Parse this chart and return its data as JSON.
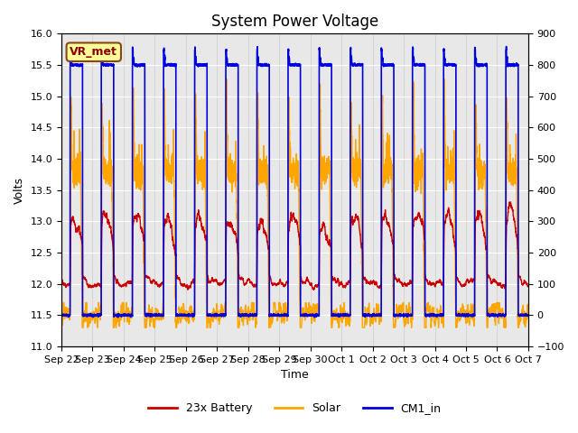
{
  "title": "System Power Voltage",
  "xlabel": "Time",
  "ylabel": "Volts",
  "left_ylim": [
    11.0,
    16.0
  ],
  "right_ylim": [
    -100,
    900
  ],
  "left_yticks": [
    11.0,
    11.5,
    12.0,
    12.5,
    13.0,
    13.5,
    14.0,
    14.5,
    15.0,
    15.5,
    16.0
  ],
  "right_yticks": [
    -100,
    0,
    100,
    200,
    300,
    400,
    500,
    600,
    700,
    800,
    900
  ],
  "xtick_labels": [
    "Sep 22",
    "Sep 23",
    "Sep 24",
    "Sep 25",
    "Sep 26",
    "Sep 27",
    "Sep 28",
    "Sep 29",
    "Sep 30",
    "Oct 1",
    "Oct 2",
    "Oct 3",
    "Oct 4",
    "Oct 5",
    "Oct 6",
    "Oct 7"
  ],
  "annotation": "VR_met",
  "bg_color": "#e8e8e8",
  "series": {
    "battery": {
      "label": "23x Battery",
      "color": "#cc0000",
      "linewidth": 1.0
    },
    "solar": {
      "label": "Solar",
      "color": "#ffa500",
      "linewidth": 1.0
    },
    "cm1": {
      "label": "CM1_in",
      "color": "#0000dd",
      "linewidth": 1.2
    }
  },
  "title_fontsize": 12,
  "axis_fontsize": 9,
  "tick_fontsize": 8,
  "legend_fontsize": 9
}
